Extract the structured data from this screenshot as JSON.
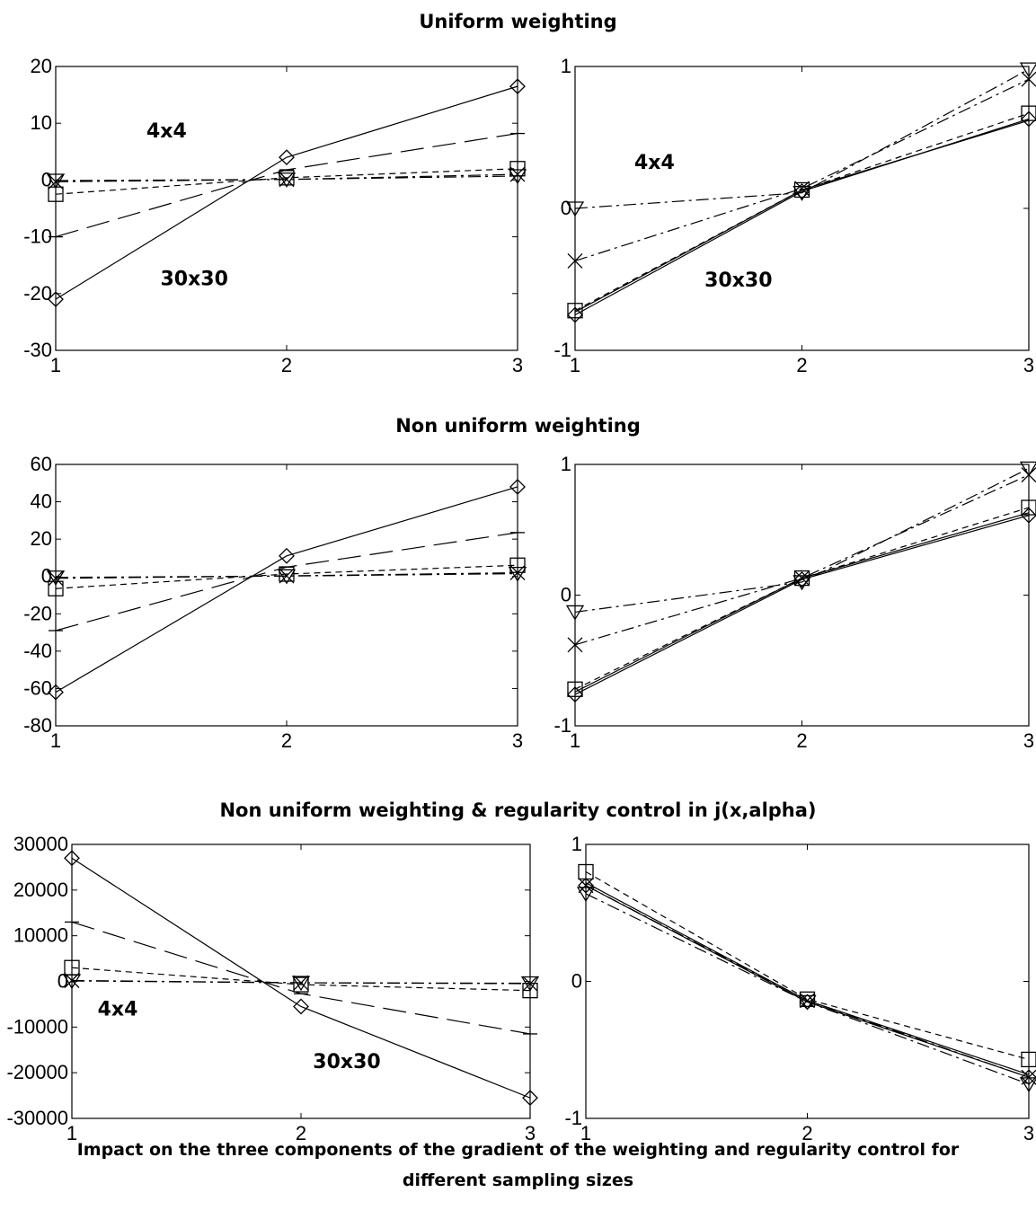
{
  "row_titles": [
    "Uniform weighting",
    "Non uniform weighting",
    "Non uniform weighting & regularity control in j(x,alpha)"
  ],
  "caption_line1": "Impact on the three components of the gradient of the weighting and regularity control for",
  "caption_line2": "different sampling sizes",
  "chart_data": [
    {
      "type": "line",
      "title": "",
      "xlabel": "",
      "ylabel": "",
      "x": [
        1,
        2,
        3
      ],
      "xlim": [
        1,
        3
      ],
      "ylim": [
        -30,
        20
      ],
      "xticks": [
        "1",
        "2",
        "3"
      ],
      "yticks": [
        "20",
        "10",
        "0",
        "-10",
        "-20",
        "-30"
      ],
      "annotations": [
        {
          "text": "4x4",
          "x": 1.48,
          "y": 7.5
        },
        {
          "text": "30x30",
          "x": 1.6,
          "y": -18.5
        }
      ],
      "series": [
        {
          "style": "solid",
          "marker": "diamond",
          "values": [
            -21,
            4,
            16.5
          ]
        },
        {
          "style": "long-dash",
          "marker": "dash",
          "values": [
            -10,
            1.8,
            8.2
          ]
        },
        {
          "style": "short-dash",
          "marker": "square",
          "values": [
            -2.5,
            0.4,
            2
          ]
        },
        {
          "style": "dash-dot",
          "marker": "cross",
          "values": [
            -0.3,
            0.1,
            1
          ]
        },
        {
          "style": "dash-dot",
          "marker": "triangle-down",
          "values": [
            -0.1,
            0.1,
            0.7
          ]
        }
      ]
    },
    {
      "type": "line",
      "title": "",
      "xlabel": "",
      "ylabel": "",
      "x": [
        1,
        2,
        3
      ],
      "xlim": [
        1,
        3
      ],
      "ylim": [
        -1,
        1
      ],
      "xticks": [
        "1",
        "2",
        "3"
      ],
      "yticks": [
        "1",
        "0",
        "-1"
      ],
      "annotations": [
        {
          "text": "4x4",
          "x": 1.35,
          "y": 0.28
        },
        {
          "text": "30x30",
          "x": 1.72,
          "y": -0.55
        }
      ],
      "series": [
        {
          "style": "solid",
          "marker": "diamond",
          "values": [
            -0.75,
            0.12,
            0.63
          ]
        },
        {
          "style": "solid",
          "marker": "none",
          "values": [
            -0.73,
            0.13,
            0.62
          ]
        },
        {
          "style": "short-dash",
          "marker": "square",
          "values": [
            -0.72,
            0.13,
            0.67
          ]
        },
        {
          "style": "dash-dot",
          "marker": "cross",
          "values": [
            -0.37,
            0.14,
            0.91
          ]
        },
        {
          "style": "dash-dot",
          "marker": "triangle-down",
          "values": [
            0,
            0.11,
            0.98
          ]
        }
      ]
    },
    {
      "type": "line",
      "title": "",
      "xlabel": "",
      "ylabel": "",
      "x": [
        1,
        2,
        3
      ],
      "xlim": [
        1,
        3
      ],
      "ylim": [
        -80,
        60
      ],
      "xticks": [
        "1",
        "2",
        "3"
      ],
      "yticks": [
        "60",
        "40",
        "20",
        "0",
        "-20",
        "-40",
        "-60",
        "-80"
      ],
      "annotations": [],
      "series": [
        {
          "style": "solid",
          "marker": "diamond",
          "values": [
            -62,
            11,
            48
          ]
        },
        {
          "style": "long-dash",
          "marker": "dash",
          "values": [
            -29,
            5,
            23.5
          ]
        },
        {
          "style": "short-dash",
          "marker": "square",
          "values": [
            -6.5,
            1.3,
            6
          ]
        },
        {
          "style": "dash-dot",
          "marker": "cross",
          "values": [
            -1,
            0.3,
            2
          ]
        },
        {
          "style": "dash-dot",
          "marker": "triangle-down",
          "values": [
            -0.5,
            0.2,
            1.5
          ]
        }
      ]
    },
    {
      "type": "line",
      "title": "",
      "xlabel": "",
      "ylabel": "",
      "x": [
        1,
        2,
        3
      ],
      "xlim": [
        1,
        3
      ],
      "ylim": [
        -1,
        1
      ],
      "xticks": [
        "1",
        "2",
        "3"
      ],
      "yticks": [
        "1",
        "0",
        "-1"
      ],
      "annotations": [],
      "series": [
        {
          "style": "solid",
          "marker": "diamond",
          "values": [
            -0.76,
            0.12,
            0.61
          ]
        },
        {
          "style": "solid",
          "marker": "none",
          "values": [
            -0.74,
            0.13,
            0.63
          ]
        },
        {
          "style": "short-dash",
          "marker": "square",
          "values": [
            -0.72,
            0.13,
            0.67
          ]
        },
        {
          "style": "dash-dot",
          "marker": "cross",
          "values": [
            -0.38,
            0.13,
            0.92
          ]
        },
        {
          "style": "dash-dot",
          "marker": "triangle-down",
          "values": [
            -0.13,
            0.1,
            0.97
          ]
        }
      ]
    },
    {
      "type": "line",
      "title": "",
      "xlabel": "",
      "ylabel": "",
      "x": [
        1,
        2,
        3
      ],
      "xlim": [
        1,
        3
      ],
      "ylim": [
        -30000,
        30000
      ],
      "xticks": [
        "1",
        "2",
        "3"
      ],
      "yticks": [
        "30000",
        "20000",
        "10000",
        "0",
        "-10000",
        "-20000",
        "-30000"
      ],
      "annotations": [
        {
          "text": "4x4",
          "x": 1.2,
          "y": -7500
        },
        {
          "text": "30x30",
          "x": 2.2,
          "y": -19000
        }
      ],
      "series": [
        {
          "style": "solid",
          "marker": "diamond",
          "values": [
            27000,
            -5500,
            -25500
          ]
        },
        {
          "style": "long-dash",
          "marker": "dash",
          "values": [
            13000,
            -2700,
            -11500
          ]
        },
        {
          "style": "short-dash",
          "marker": "square",
          "values": [
            3000,
            -700,
            -2000
          ]
        },
        {
          "style": "dash-dot",
          "marker": "cross",
          "values": [
            200,
            -300,
            -500
          ]
        },
        {
          "style": "dash-dot",
          "marker": "triangle-down",
          "values": [
            100,
            -300,
            -400
          ]
        }
      ]
    },
    {
      "type": "line",
      "title": "",
      "xlabel": "",
      "ylabel": "",
      "x": [
        1,
        2,
        3
      ],
      "xlim": [
        1,
        3
      ],
      "ylim": [
        -1,
        1
      ],
      "xticks": [
        "1",
        "2",
        "3"
      ],
      "yticks": [
        "1",
        "0",
        "-1"
      ],
      "annotations": [],
      "series": [
        {
          "style": "solid",
          "marker": "diamond",
          "values": [
            0.7,
            -0.15,
            -0.7
          ]
        },
        {
          "style": "solid",
          "marker": "none",
          "values": [
            0.72,
            -0.14,
            -0.68
          ]
        },
        {
          "style": "short-dash",
          "marker": "square",
          "values": [
            0.8,
            -0.13,
            -0.57
          ]
        },
        {
          "style": "dash-dot",
          "marker": "cross",
          "values": [
            0.7,
            -0.14,
            -0.7
          ]
        },
        {
          "style": "dash-dot",
          "marker": "triangle-down",
          "values": [
            0.64,
            -0.15,
            -0.75
          ]
        }
      ]
    }
  ]
}
